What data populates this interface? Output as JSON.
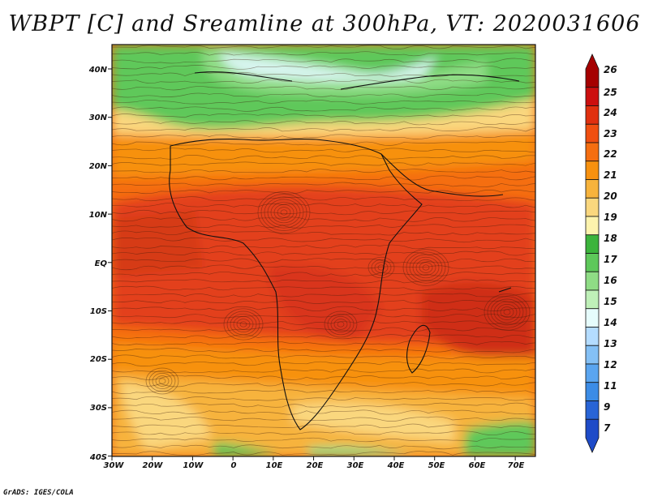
{
  "title": "WBPT [C] and Sreamline at 300hPa, VT: 2020031606",
  "credit": "GrADS: IGES/COLA",
  "map": {
    "lat_labels": [
      "40N",
      "30N",
      "20N",
      "10N",
      "EQ",
      "10S",
      "20S",
      "30S",
      "40S"
    ],
    "lon_labels": [
      "30W",
      "20W",
      "10W",
      "0",
      "10E",
      "20E",
      "30E",
      "40E",
      "50E",
      "60E",
      "70E"
    ]
  },
  "colorbar": {
    "levels": [
      "26",
      "25",
      "24",
      "23",
      "22",
      "21",
      "20",
      "19",
      "18",
      "17",
      "16",
      "15",
      "14",
      "13",
      "12",
      "11",
      "9",
      "7"
    ],
    "colors": [
      "#a50000",
      "#cc0f0f",
      "#e0300f",
      "#f04f10",
      "#f56e10",
      "#f7910f",
      "#f7b33c",
      "#fad77e",
      "#fdf3ad",
      "#3cb43c",
      "#5ec85a",
      "#8fdc85",
      "#bff0b8",
      "#e6fcfc",
      "#b4dcff",
      "#84c0f5",
      "#5aa5f0",
      "#3c8ce6",
      "#2864d6",
      "#1e4bc8"
    ]
  }
}
